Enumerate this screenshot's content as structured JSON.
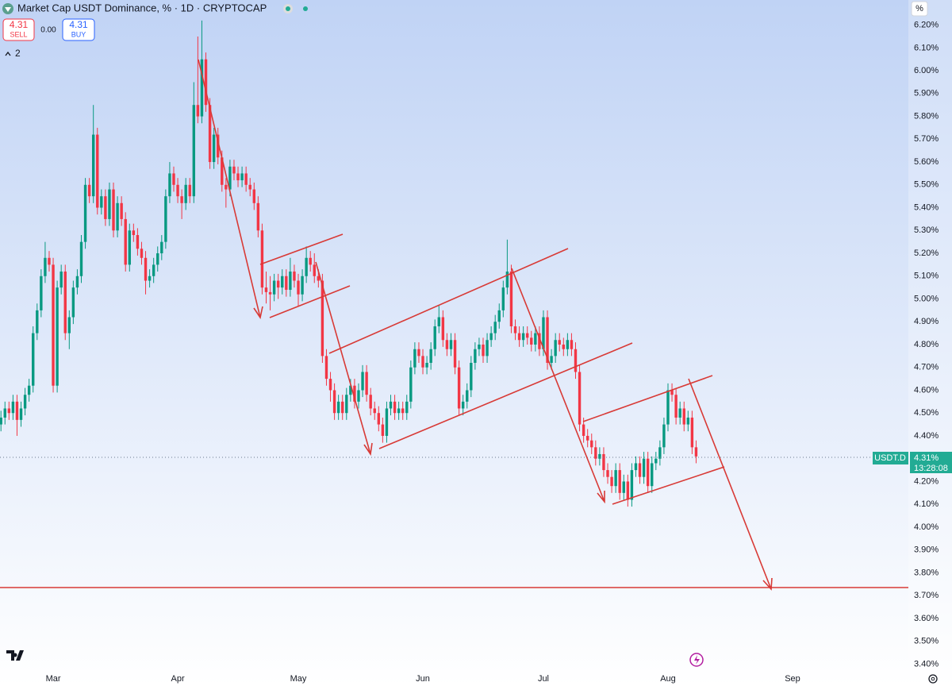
{
  "chart_data": {
    "type": "candlestick",
    "title": "Market Cap USDT Dominance, % · 1D · CRYPTOCAP",
    "up_color": "#089981",
    "down_color": "#f23645",
    "grid": false,
    "ylim": [
      3.37,
      6.31
    ],
    "yticks": [
      {
        "value": 3.4,
        "label": "3.40%"
      },
      {
        "value": 3.5,
        "label": "3.50%"
      },
      {
        "value": 3.6,
        "label": "3.60%"
      },
      {
        "value": 3.7,
        "label": "3.70%"
      },
      {
        "value": 3.8,
        "label": "3.80%"
      },
      {
        "value": 3.9,
        "label": "3.90%"
      },
      {
        "value": 4.0,
        "label": "4.00%"
      },
      {
        "value": 4.1,
        "label": "4.10%"
      },
      {
        "value": 4.2,
        "label": "4.20%"
      },
      {
        "value": 4.3,
        "label": "4.30%"
      },
      {
        "value": 4.4,
        "label": "4.40%"
      },
      {
        "value": 4.5,
        "label": "4.50%"
      },
      {
        "value": 4.6,
        "label": "4.60%"
      },
      {
        "value": 4.7,
        "label": "4.70%"
      },
      {
        "value": 4.8,
        "label": "4.80%"
      },
      {
        "value": 4.9,
        "label": "4.90%"
      },
      {
        "value": 5.0,
        "label": "5.00%"
      },
      {
        "value": 5.1,
        "label": "5.10%"
      },
      {
        "value": 5.2,
        "label": "5.20%"
      },
      {
        "value": 5.3,
        "label": "5.30%"
      },
      {
        "value": 5.4,
        "label": "5.40%"
      },
      {
        "value": 5.5,
        "label": "5.50%"
      },
      {
        "value": 5.6,
        "label": "5.60%"
      },
      {
        "value": 5.7,
        "label": "5.70%"
      },
      {
        "value": 5.8,
        "label": "5.80%"
      },
      {
        "value": 5.9,
        "label": "5.90%"
      },
      {
        "value": 6.0,
        "label": "6.00%"
      },
      {
        "value": 6.1,
        "label": "6.10%"
      },
      {
        "value": 6.2,
        "label": "6.20%"
      }
    ],
    "categories": [
      null,
      null,
      null,
      null,
      null,
      null,
      null,
      null,
      null,
      null,
      null,
      null,
      null,
      "Mar",
      null,
      null,
      null,
      null,
      null,
      null,
      null,
      null,
      null,
      null,
      null,
      null,
      null,
      null,
      null,
      null,
      null,
      null,
      null,
      null,
      null,
      null,
      null,
      null,
      null,
      null,
      null,
      null,
      null,
      null,
      "Apr",
      null,
      null,
      null,
      null,
      null,
      null,
      null,
      null,
      null,
      null,
      null,
      null,
      null,
      null,
      null,
      null,
      null,
      null,
      null,
      null,
      null,
      null,
      null,
      null,
      null,
      null,
      null,
      null,
      null,
      "May",
      null,
      null,
      null,
      null,
      null,
      null,
      null,
      null,
      null,
      null,
      null,
      null,
      null,
      null,
      null,
      null,
      null,
      null,
      null,
      null,
      null,
      null,
      null,
      null,
      null,
      null,
      null,
      null,
      null,
      null,
      "Jun",
      null,
      null,
      null,
      null,
      null,
      null,
      null,
      null,
      null,
      null,
      null,
      null,
      null,
      null,
      null,
      null,
      null,
      null,
      null,
      null,
      null,
      null,
      null,
      null,
      null,
      null,
      null,
      null,
      null,
      "Jul",
      null,
      null,
      null,
      null,
      null,
      null,
      null,
      null,
      null,
      null,
      null,
      null,
      null,
      null,
      null,
      null,
      null,
      null,
      null,
      null,
      null,
      null,
      null,
      null,
      null,
      null,
      null,
      null,
      null,
      null,
      "Aug",
      null,
      null,
      null,
      null,
      null,
      null,
      null,
      null,
      null,
      null,
      null,
      null,
      null,
      null,
      null,
      null,
      null,
      null,
      null,
      null,
      null,
      null,
      null,
      null,
      null,
      null,
      null,
      null,
      null,
      null,
      "Sep"
    ],
    "values": [
      [
        4.45,
        4.51,
        4.42,
        4.48
      ],
      [
        4.48,
        4.55,
        4.45,
        4.52
      ],
      [
        4.52,
        4.55,
        4.47,
        4.5
      ],
      [
        4.5,
        4.58,
        4.47,
        4.55
      ],
      [
        4.55,
        4.58,
        4.4,
        4.47
      ],
      [
        4.47,
        4.55,
        4.44,
        4.52
      ],
      [
        4.52,
        4.61,
        4.49,
        4.58
      ],
      [
        4.58,
        4.65,
        4.55,
        4.62
      ],
      [
        4.62,
        4.88,
        4.59,
        4.85
      ],
      [
        4.85,
        4.98,
        4.82,
        4.95
      ],
      [
        4.95,
        5.13,
        4.92,
        5.1
      ],
      [
        5.1,
        5.25,
        5.07,
        5.18
      ],
      [
        5.18,
        5.21,
        5.12,
        5.15
      ],
      [
        5.15,
        5.18,
        4.59,
        4.62
      ],
      [
        4.62,
        5.08,
        4.59,
        5.05
      ],
      [
        5.05,
        5.15,
        5.02,
        5.12
      ],
      [
        5.12,
        5.15,
        4.82,
        4.85
      ],
      [
        4.85,
        4.95,
        4.78,
        4.92
      ],
      [
        4.92,
        5.08,
        4.89,
        5.05
      ],
      [
        5.05,
        5.13,
        5.02,
        5.1
      ],
      [
        5.1,
        5.28,
        5.07,
        5.25
      ],
      [
        5.25,
        5.53,
        5.22,
        5.5
      ],
      [
        5.5,
        5.53,
        5.42,
        5.45
      ],
      [
        5.45,
        5.85,
        5.42,
        5.72
      ],
      [
        5.72,
        5.75,
        5.37,
        5.4
      ],
      [
        5.4,
        5.48,
        5.37,
        5.45
      ],
      [
        5.45,
        5.48,
        5.32,
        5.35
      ],
      [
        5.35,
        5.51,
        5.32,
        5.48
      ],
      [
        5.48,
        5.51,
        5.27,
        5.3
      ],
      [
        5.3,
        5.45,
        5.27,
        5.42
      ],
      [
        5.42,
        5.45,
        5.32,
        5.35
      ],
      [
        5.35,
        5.38,
        5.12,
        5.15
      ],
      [
        5.15,
        5.33,
        5.12,
        5.3
      ],
      [
        5.3,
        5.33,
        5.25,
        5.28
      ],
      [
        5.28,
        5.31,
        5.19,
        5.22
      ],
      [
        5.22,
        5.25,
        5.15,
        5.18
      ],
      [
        5.18,
        5.21,
        5.02,
        5.08
      ],
      [
        5.08,
        5.13,
        5.05,
        5.1
      ],
      [
        5.1,
        5.18,
        5.07,
        5.15
      ],
      [
        5.15,
        5.23,
        5.12,
        5.2
      ],
      [
        5.2,
        5.28,
        5.17,
        5.25
      ],
      [
        5.25,
        5.48,
        5.22,
        5.45
      ],
      [
        5.45,
        5.6,
        5.42,
        5.55
      ],
      [
        5.55,
        5.58,
        5.47,
        5.5
      ],
      [
        5.5,
        5.53,
        5.42,
        5.45
      ],
      [
        5.45,
        5.48,
        5.35,
        5.42
      ],
      [
        5.42,
        5.53,
        5.39,
        5.5
      ],
      [
        5.5,
        5.53,
        5.42,
        5.45
      ],
      [
        5.45,
        5.95,
        5.42,
        5.85
      ],
      [
        5.85,
        6.15,
        5.77,
        5.8
      ],
      [
        5.8,
        6.22,
        5.77,
        6.05
      ],
      [
        6.05,
        6.08,
        5.82,
        5.85
      ],
      [
        5.85,
        5.88,
        5.57,
        5.6
      ],
      [
        5.6,
        5.75,
        5.57,
        5.72
      ],
      [
        5.72,
        5.75,
        5.59,
        5.62
      ],
      [
        5.62,
        5.65,
        5.47,
        5.5
      ],
      [
        5.5,
        5.53,
        5.4,
        5.48
      ],
      [
        5.48,
        5.61,
        5.45,
        5.58
      ],
      [
        5.58,
        5.61,
        5.52,
        5.55
      ],
      [
        5.55,
        5.58,
        5.49,
        5.52
      ],
      [
        5.52,
        5.58,
        5.49,
        5.55
      ],
      [
        5.55,
        5.58,
        5.47,
        5.5
      ],
      [
        5.5,
        5.53,
        5.45,
        5.48
      ],
      [
        5.48,
        5.51,
        5.39,
        5.42
      ],
      [
        5.42,
        5.45,
        5.27,
        5.3
      ],
      [
        5.3,
        5.33,
        5.02,
        5.05
      ],
      [
        5.05,
        5.12,
        4.98,
        5.03
      ],
      [
        5.03,
        5.1,
        4.95,
        5.02
      ],
      [
        5.02,
        5.11,
        4.99,
        5.08
      ],
      [
        5.08,
        5.11,
        5.0,
        5.05
      ],
      [
        5.05,
        5.13,
        5.02,
        5.1
      ],
      [
        5.1,
        5.13,
        5.01,
        5.04
      ],
      [
        5.04,
        5.18,
        5.01,
        5.12
      ],
      [
        5.12,
        5.15,
        5.05,
        5.08
      ],
      [
        5.08,
        5.11,
        4.97,
        5.02
      ],
      [
        5.02,
        5.13,
        4.99,
        5.1
      ],
      [
        5.1,
        5.23,
        5.07,
        5.18
      ],
      [
        5.18,
        5.21,
        5.12,
        5.15
      ],
      [
        5.15,
        5.2,
        5.07,
        5.1
      ],
      [
        5.1,
        5.13,
        5.05,
        5.08
      ],
      [
        5.08,
        5.11,
        4.72,
        4.75
      ],
      [
        4.75,
        4.78,
        4.62,
        4.65
      ],
      [
        4.65,
        4.68,
        4.55,
        4.6
      ],
      [
        4.6,
        4.63,
        4.47,
        4.5
      ],
      [
        4.5,
        4.58,
        4.47,
        4.55
      ],
      [
        4.55,
        4.58,
        4.47,
        4.5
      ],
      [
        4.5,
        4.61,
        4.47,
        4.58
      ],
      [
        4.58,
        4.65,
        4.55,
        4.62
      ],
      [
        4.62,
        4.65,
        4.52,
        4.55
      ],
      [
        4.55,
        4.63,
        4.52,
        4.6
      ],
      [
        4.6,
        4.71,
        4.57,
        4.68
      ],
      [
        4.68,
        4.71,
        4.55,
        4.58
      ],
      [
        4.58,
        4.61,
        4.49,
        4.52
      ],
      [
        4.52,
        4.55,
        4.47,
        4.5
      ],
      [
        4.5,
        4.53,
        4.42,
        4.45
      ],
      [
        4.45,
        4.48,
        4.37,
        4.4
      ],
      [
        4.4,
        4.55,
        4.37,
        4.52
      ],
      [
        4.52,
        4.58,
        4.49,
        4.55
      ],
      [
        4.55,
        4.58,
        4.47,
        4.5
      ],
      [
        4.5,
        4.55,
        4.47,
        4.52
      ],
      [
        4.52,
        4.55,
        4.47,
        4.5
      ],
      [
        4.5,
        4.58,
        4.47,
        4.55
      ],
      [
        4.55,
        4.73,
        4.52,
        4.7
      ],
      [
        4.7,
        4.81,
        4.67,
        4.78
      ],
      [
        4.78,
        4.81,
        4.72,
        4.75
      ],
      [
        4.75,
        4.78,
        4.67,
        4.7
      ],
      [
        4.7,
        4.75,
        4.67,
        4.72
      ],
      [
        4.72,
        4.81,
        4.69,
        4.78
      ],
      [
        4.78,
        4.91,
        4.75,
        4.88
      ],
      [
        4.88,
        4.97,
        4.85,
        4.92
      ],
      [
        4.92,
        4.95,
        4.79,
        4.82
      ],
      [
        4.82,
        4.85,
        4.75,
        4.78
      ],
      [
        4.78,
        4.85,
        4.75,
        4.82
      ],
      [
        4.82,
        4.85,
        4.67,
        4.7
      ],
      [
        4.7,
        4.73,
        4.49,
        4.52
      ],
      [
        4.52,
        4.58,
        4.49,
        4.55
      ],
      [
        4.55,
        4.63,
        4.52,
        4.6
      ],
      [
        4.6,
        4.75,
        4.57,
        4.72
      ],
      [
        4.72,
        4.81,
        4.69,
        4.78
      ],
      [
        4.78,
        4.83,
        4.75,
        4.8
      ],
      [
        4.8,
        4.83,
        4.72,
        4.75
      ],
      [
        4.75,
        4.85,
        4.72,
        4.82
      ],
      [
        4.82,
        4.88,
        4.79,
        4.85
      ],
      [
        4.85,
        4.93,
        4.82,
        4.9
      ],
      [
        4.9,
        4.98,
        4.87,
        4.95
      ],
      [
        4.95,
        5.08,
        4.92,
        5.05
      ],
      [
        5.05,
        5.26,
        5.02,
        5.12
      ],
      [
        5.12,
        5.15,
        4.85,
        4.88
      ],
      [
        4.88,
        4.91,
        4.82,
        4.85
      ],
      [
        4.85,
        4.88,
        4.79,
        4.82
      ],
      [
        4.82,
        4.88,
        4.79,
        4.85
      ],
      [
        4.85,
        4.88,
        4.8,
        4.83
      ],
      [
        4.83,
        4.86,
        4.77,
        4.8
      ],
      [
        4.8,
        4.88,
        4.77,
        4.85
      ],
      [
        4.85,
        4.88,
        4.75,
        4.78
      ],
      [
        4.78,
        4.95,
        4.75,
        4.92
      ],
      [
        4.92,
        4.95,
        4.69,
        4.72
      ],
      [
        4.72,
        4.78,
        4.69,
        4.75
      ],
      [
        4.75,
        4.85,
        4.72,
        4.82
      ],
      [
        4.82,
        4.85,
        4.77,
        4.8
      ],
      [
        4.8,
        4.83,
        4.75,
        4.78
      ],
      [
        4.78,
        4.85,
        4.75,
        4.82
      ],
      [
        4.82,
        4.85,
        4.75,
        4.78
      ],
      [
        4.78,
        4.81,
        4.65,
        4.68
      ],
      [
        4.68,
        4.71,
        4.42,
        4.45
      ],
      [
        4.45,
        4.48,
        4.37,
        4.4
      ],
      [
        4.4,
        4.43,
        4.35,
        4.38
      ],
      [
        4.38,
        4.41,
        4.32,
        4.35
      ],
      [
        4.35,
        4.38,
        4.27,
        4.3
      ],
      [
        4.3,
        4.35,
        4.27,
        4.32
      ],
      [
        4.32,
        4.35,
        4.22,
        4.25
      ],
      [
        4.25,
        4.28,
        4.19,
        4.22
      ],
      [
        4.22,
        4.25,
        4.15,
        4.18
      ],
      [
        4.18,
        4.28,
        4.15,
        4.25
      ],
      [
        4.25,
        4.28,
        4.12,
        4.15
      ],
      [
        4.15,
        4.23,
        4.12,
        4.2
      ],
      [
        4.2,
        4.23,
        4.09,
        4.12
      ],
      [
        4.12,
        4.28,
        4.09,
        4.25
      ],
      [
        4.25,
        4.31,
        4.22,
        4.28
      ],
      [
        4.28,
        4.31,
        4.19,
        4.22
      ],
      [
        4.22,
        4.33,
        4.19,
        4.3
      ],
      [
        4.3,
        4.33,
        4.15,
        4.18
      ],
      [
        4.18,
        4.31,
        4.15,
        4.28
      ],
      [
        4.28,
        4.33,
        4.25,
        4.3
      ],
      [
        4.3,
        4.38,
        4.27,
        4.35
      ],
      [
        4.35,
        4.48,
        4.32,
        4.45
      ],
      [
        4.45,
        4.63,
        4.42,
        4.6
      ],
      [
        4.6,
        4.63,
        4.55,
        4.58
      ],
      [
        4.58,
        4.61,
        4.45,
        4.48
      ],
      [
        4.48,
        4.55,
        4.45,
        4.52
      ],
      [
        4.52,
        4.55,
        4.42,
        4.45
      ],
      [
        4.45,
        4.51,
        4.42,
        4.48
      ],
      [
        4.48,
        4.51,
        4.32,
        4.35
      ],
      [
        4.35,
        4.38,
        4.28,
        4.31
      ],
      null,
      null,
      null,
      null,
      null,
      null,
      null,
      null,
      null,
      null,
      null,
      null,
      null,
      null,
      null,
      null,
      null,
      null,
      null,
      null,
      null,
      null,
      null,
      null
    ]
  },
  "ui": {
    "sell_price": "4.31",
    "sell_label": "SELL",
    "spread": "0.00",
    "buy_price": "4.31",
    "buy_label": "BUY",
    "indicators_count": "2",
    "scale_mode": "%",
    "symbol": "USDT.D",
    "last_price": "4.31%",
    "countdown": "13:28:08"
  }
}
